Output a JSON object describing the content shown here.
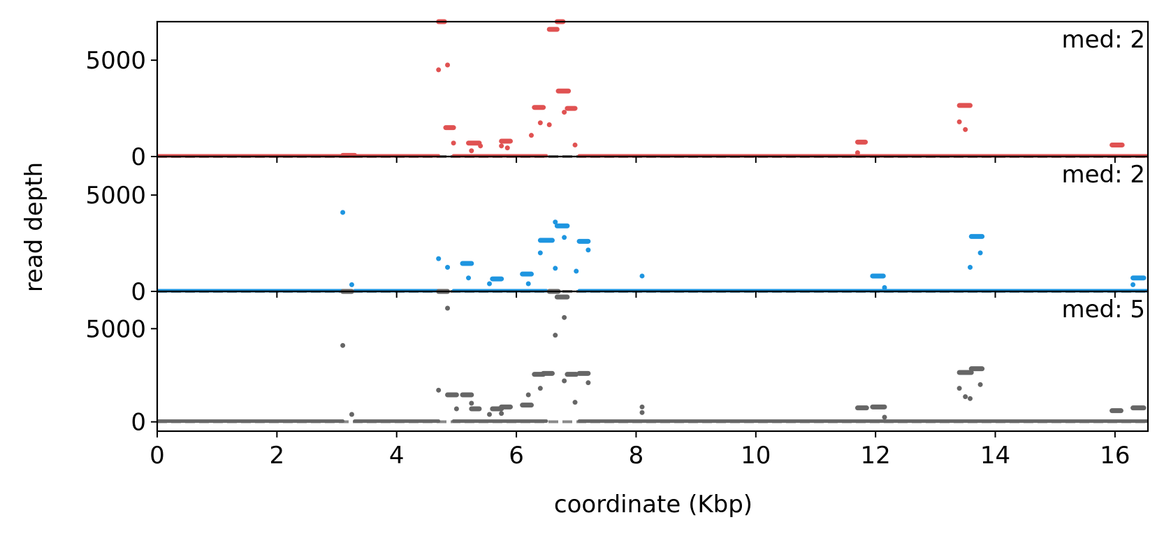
{
  "figure": {
    "xlabel": "coordinate (Kbp)",
    "ylabel": "read depth"
  },
  "chart_data": [
    {
      "type": "scatter",
      "panel": "top",
      "color": "#e05252",
      "annotation": "med: 2",
      "xlim": [
        0,
        16.55
      ],
      "ylim": [
        0,
        7000
      ],
      "yticks": [
        0,
        5000
      ],
      "ytick_labels": [
        "0",
        "5000"
      ],
      "xticks": [
        0,
        2,
        4,
        6,
        8,
        10,
        12,
        14,
        16
      ],
      "xtick_labels": [
        "0",
        "2",
        "4",
        "6",
        "8",
        "10",
        "12",
        "14",
        "16"
      ],
      "median_line": 2,
      "baseline_segments": [
        [
          0.0,
          3.1
        ],
        [
          3.3,
          4.7
        ],
        [
          4.95,
          6.5
        ],
        [
          7.05,
          16.55
        ]
      ],
      "runs": [
        [
          3.1,
          3.3,
          60
        ],
        [
          4.7,
          4.8,
          7000
        ],
        [
          4.82,
          4.95,
          1500
        ],
        [
          5.2,
          5.38,
          700
        ],
        [
          5.75,
          5.9,
          800
        ],
        [
          6.3,
          6.45,
          2550
        ],
        [
          6.55,
          6.68,
          6600
        ],
        [
          6.68,
          6.78,
          7000
        ],
        [
          6.7,
          6.87,
          3400
        ],
        [
          6.85,
          6.98,
          2500
        ],
        [
          11.7,
          11.83,
          750
        ],
        [
          13.4,
          13.58,
          2650
        ],
        [
          15.95,
          16.12,
          600
        ]
      ],
      "points": [
        [
          4.7,
          4500
        ],
        [
          4.85,
          4750
        ],
        [
          4.95,
          700
        ],
        [
          5.25,
          300
        ],
        [
          5.4,
          550
        ],
        [
          5.75,
          550
        ],
        [
          5.85,
          450
        ],
        [
          6.25,
          1100
        ],
        [
          6.4,
          1750
        ],
        [
          6.55,
          1650
        ],
        [
          6.8,
          2300
        ],
        [
          6.98,
          600
        ],
        [
          11.7,
          200
        ],
        [
          13.4,
          1800
        ],
        [
          13.5,
          1400
        ]
      ]
    },
    {
      "type": "scatter",
      "panel": "middle",
      "color": "#1e95e0",
      "annotation": "med: 2",
      "xlim": [
        0,
        16.55
      ],
      "ylim": [
        0,
        7000
      ],
      "yticks": [
        0,
        5000
      ],
      "ytick_labels": [
        "0",
        "5000"
      ],
      "xticks": [
        0,
        2,
        4,
        6,
        8,
        10,
        12,
        14,
        16
      ],
      "xtick_labels": [
        "0",
        "2",
        "4",
        "6",
        "8",
        "10",
        "12",
        "14",
        "16"
      ],
      "median_line": 2,
      "baseline_segments": [
        [
          0.0,
          3.1
        ],
        [
          3.3,
          4.7
        ],
        [
          4.95,
          6.5
        ],
        [
          7.05,
          16.55
        ]
      ],
      "runs": [
        [
          5.1,
          5.25,
          1450
        ],
        [
          5.6,
          5.75,
          650
        ],
        [
          6.1,
          6.25,
          900
        ],
        [
          6.4,
          6.6,
          2650
        ],
        [
          6.68,
          6.85,
          3400
        ],
        [
          7.05,
          7.2,
          2600
        ],
        [
          11.95,
          12.13,
          800
        ],
        [
          13.6,
          13.78,
          2850
        ],
        [
          16.3,
          16.48,
          700
        ]
      ],
      "points": [
        [
          3.1,
          4100
        ],
        [
          3.25,
          350
        ],
        [
          4.7,
          1700
        ],
        [
          4.85,
          1250
        ],
        [
          5.2,
          700
        ],
        [
          5.55,
          400
        ],
        [
          6.2,
          400
        ],
        [
          6.4,
          2000
        ],
        [
          6.65,
          3600
        ],
        [
          6.65,
          1200
        ],
        [
          6.8,
          2800
        ],
        [
          7.0,
          1050
        ],
        [
          7.2,
          2150
        ],
        [
          8.1,
          800
        ],
        [
          12.15,
          200
        ],
        [
          13.58,
          1250
        ],
        [
          13.75,
          2000
        ],
        [
          16.3,
          350
        ]
      ]
    },
    {
      "type": "scatter",
      "panel": "bottom",
      "color": "#666666",
      "annotation": "med: 5",
      "xlim": [
        0,
        16.55
      ],
      "ylim": [
        -500,
        7000
      ],
      "yticks": [
        0,
        5000
      ],
      "ytick_labels": [
        "0",
        "5000"
      ],
      "xticks": [
        0,
        2,
        4,
        6,
        8,
        10,
        12,
        14,
        16
      ],
      "xtick_labels": [
        "0",
        "2",
        "4",
        "6",
        "8",
        "10",
        "12",
        "14",
        "16"
      ],
      "median_line": 5,
      "baseline_segments": [
        [
          0.0,
          3.1
        ],
        [
          3.3,
          4.7
        ],
        [
          4.95,
          6.5
        ],
        [
          7.05,
          16.55
        ]
      ],
      "runs": [
        [
          3.1,
          3.25,
          7000
        ],
        [
          4.7,
          4.85,
          7000
        ],
        [
          4.85,
          5.0,
          1450
        ],
        [
          5.1,
          5.25,
          1450
        ],
        [
          5.25,
          5.38,
          700
        ],
        [
          5.6,
          5.75,
          700
        ],
        [
          5.75,
          5.9,
          800
        ],
        [
          6.1,
          6.25,
          900
        ],
        [
          6.3,
          6.45,
          2550
        ],
        [
          6.45,
          6.6,
          2600
        ],
        [
          6.55,
          6.7,
          7000
        ],
        [
          6.68,
          6.85,
          6700
        ],
        [
          6.85,
          7.0,
          2550
        ],
        [
          7.05,
          7.2,
          2600
        ],
        [
          11.7,
          11.85,
          750
        ],
        [
          11.95,
          12.15,
          800
        ],
        [
          13.4,
          13.6,
          2650
        ],
        [
          13.6,
          13.78,
          2850
        ],
        [
          15.95,
          16.1,
          600
        ],
        [
          16.3,
          16.48,
          750
        ]
      ],
      "points": [
        [
          3.1,
          4100
        ],
        [
          3.25,
          400
        ],
        [
          4.7,
          1700
        ],
        [
          4.85,
          6100
        ],
        [
          5.0,
          700
        ],
        [
          5.25,
          1000
        ],
        [
          5.55,
          400
        ],
        [
          5.75,
          450
        ],
        [
          6.2,
          1450
        ],
        [
          6.4,
          1800
        ],
        [
          6.65,
          4650
        ],
        [
          6.8,
          5600
        ],
        [
          6.8,
          2200
        ],
        [
          6.98,
          1050
        ],
        [
          7.2,
          2100
        ],
        [
          8.1,
          800
        ],
        [
          8.1,
          500
        ],
        [
          12.15,
          250
        ],
        [
          13.4,
          1800
        ],
        [
          13.5,
          1350
        ],
        [
          13.58,
          1250
        ],
        [
          13.75,
          2000
        ]
      ]
    }
  ]
}
